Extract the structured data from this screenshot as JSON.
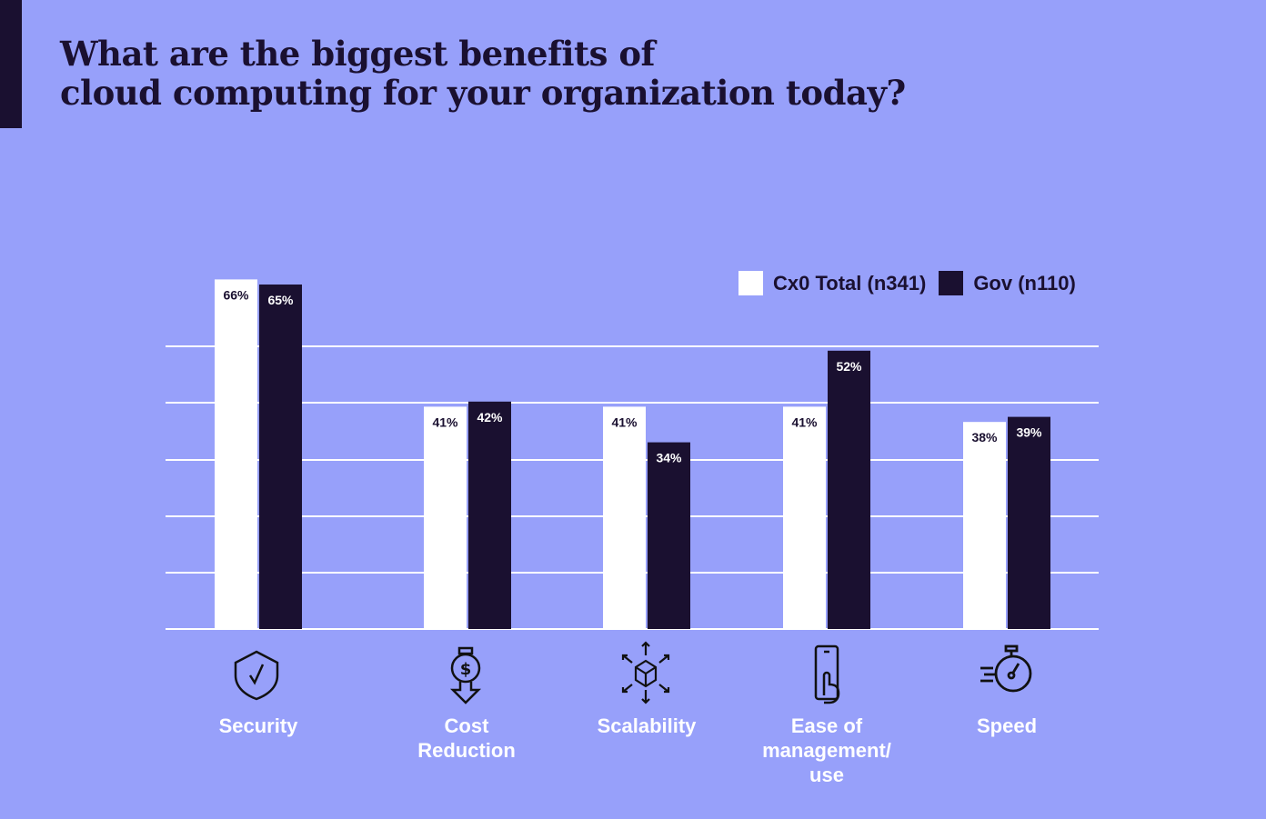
{
  "title_lines": [
    "What are the biggest benefits of",
    "cloud computing for your organization today?"
  ],
  "colors": {
    "background": "#97a0fa",
    "cx0": "#ffffff",
    "gov": "#1a1030",
    "grid": "#ffffff"
  },
  "chart_data": {
    "type": "bar",
    "title": "What are the biggest benefits of cloud computing for your organization today?",
    "categories": [
      "Security",
      "Cost Reduction",
      "Scalability",
      "Ease of management/ use",
      "Speed"
    ],
    "category_lines": [
      [
        "Security"
      ],
      [
        "Cost",
        "Reduction"
      ],
      [
        "Scalability"
      ],
      [
        "Ease of",
        "management/",
        "use"
      ],
      [
        "Speed"
      ]
    ],
    "category_icons": [
      "shield-check-icon",
      "dollar-down-arrow-icon",
      "cube-expand-icon",
      "phone-touch-icon",
      "stopwatch-speed-icon"
    ],
    "series": [
      {
        "name": "Cx0 Total (n341)",
        "values": [
          66,
          41,
          41,
          41,
          38
        ],
        "labels": [
          "66%",
          "41%",
          "41%",
          "41%",
          "38%"
        ]
      },
      {
        "name": "Gov (n110)",
        "values": [
          65,
          42,
          34,
          52,
          39
        ],
        "labels": [
          "65%",
          "42%",
          "34%",
          "52%",
          "39%"
        ]
      }
    ],
    "unit": "%",
    "grid": true,
    "legend": "top-right",
    "xlabel": "",
    "ylabel": ""
  }
}
